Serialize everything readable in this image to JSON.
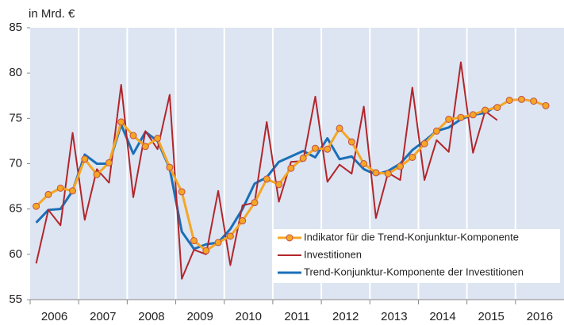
{
  "chart_data": {
    "type": "line",
    "y_label": "in Mrd. €",
    "categories": [
      "2006",
      null,
      null,
      null,
      "2007",
      null,
      null,
      null,
      "2008",
      null,
      null,
      null,
      "2009",
      null,
      null,
      null,
      "2010",
      null,
      null,
      null,
      "2011",
      null,
      null,
      null,
      "2012",
      null,
      null,
      null,
      "2013",
      null,
      null,
      null,
      "2014",
      null,
      null,
      null,
      "2015",
      null,
      null,
      null,
      "2016",
      null,
      null,
      null
    ],
    "ylim": [
      55,
      85
    ],
    "yticks": [
      55,
      60,
      65,
      70,
      75,
      80,
      85
    ],
    "series": [
      {
        "name": "Indikator für die Trend-Konjunktur-Komponente",
        "color": "#f5a623",
        "marker": "circle",
        "values": [
          65.3,
          66.6,
          67.3,
          67.0,
          70.5,
          68.8,
          70.1,
          74.6,
          73.1,
          71.9,
          72.8,
          69.6,
          66.9,
          61.5,
          60.4,
          61.3,
          62.0,
          63.7,
          65.7,
          68.3,
          67.7,
          69.5,
          70.6,
          71.7,
          71.6,
          73.9,
          72.4,
          70.0,
          69.0,
          68.9,
          69.7,
          70.7,
          72.2,
          73.6,
          74.9,
          75.1,
          75.4,
          75.9,
          76.2,
          77.0,
          77.1,
          76.9,
          76.4,
          null
        ]
      },
      {
        "name": "Investitionen",
        "color": "#b2262b",
        "values": [
          59.0,
          64.9,
          63.2,
          73.4,
          63.8,
          69.4,
          67.9,
          78.7,
          66.3,
          73.6,
          71.6,
          77.6,
          57.3,
          60.5,
          60.0,
          67.0,
          58.8,
          65.4,
          65.7,
          74.6,
          65.8,
          70.2,
          70.3,
          77.4,
          68.0,
          69.9,
          68.9,
          76.3,
          64.0,
          69.0,
          68.2,
          78.4,
          68.2,
          72.6,
          71.3,
          81.2,
          71.2,
          75.8,
          74.8,
          null,
          null,
          null,
          null,
          null
        ]
      },
      {
        "name": "Trend-Konjunktur-Komponente der Investitionen",
        "color": "#1a6fb7",
        "values": [
          63.5,
          64.9,
          65.0,
          67.0,
          71.0,
          70.0,
          70.0,
          74.3,
          71.1,
          73.5,
          72.5,
          69.5,
          62.5,
          60.6,
          61.1,
          61.3,
          62.8,
          65.0,
          67.8,
          68.5,
          70.2,
          70.8,
          71.4,
          70.7,
          72.8,
          70.5,
          70.8,
          69.4,
          68.8,
          69.2,
          70.0,
          71.5,
          72.5,
          73.6,
          74.0,
          74.9,
          75.4,
          75.6,
          76.4,
          null,
          null,
          null,
          null,
          null
        ]
      }
    ]
  }
}
